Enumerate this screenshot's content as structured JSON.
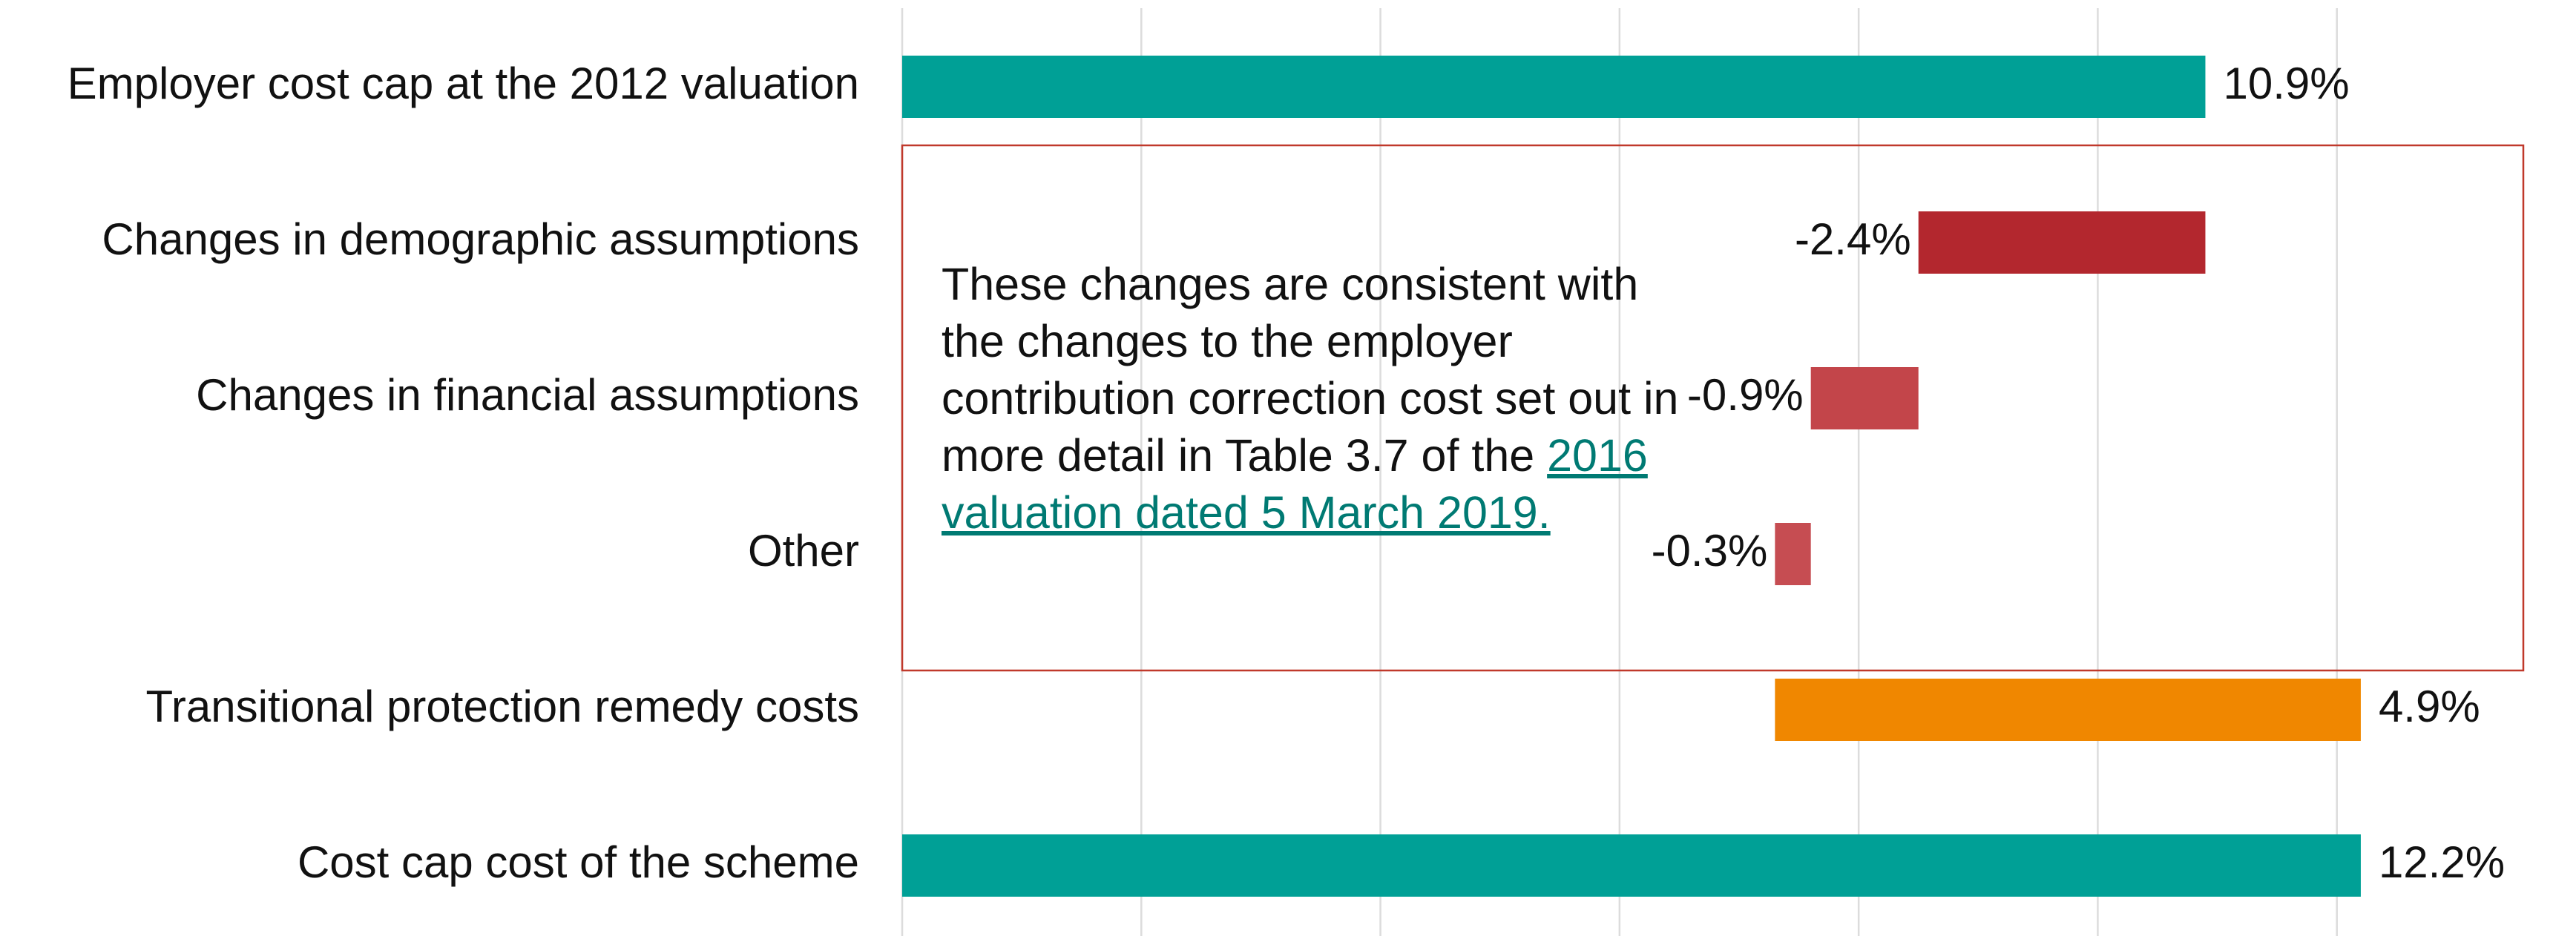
{
  "chart_data": {
    "type": "waterfall",
    "categories": [
      "Employer cost cap at the 2012 valuation",
      "Changes in demographic assumptions",
      "Changes in financial assumptions",
      "Other",
      "Transitional protection remedy costs",
      "Cost cap cost of the scheme"
    ],
    "values": [
      10.9,
      -2.4,
      -0.9,
      -0.3,
      4.9,
      12.2
    ],
    "value_labels": [
      "10.9%",
      "-2.4%",
      "-0.9%",
      "-0.3%",
      "4.9%",
      "12.2%"
    ],
    "measure": [
      "absolute",
      "relative",
      "relative",
      "relative",
      "relative",
      "total"
    ],
    "colors": [
      "#00a096",
      "#b3272e",
      "#c3454a",
      "#c64d52",
      "#f08700",
      "#00a096"
    ],
    "xlim": [
      0,
      14
    ],
    "xticks": [
      0,
      2,
      4,
      6,
      8,
      10,
      12
    ],
    "grid": true,
    "annotation": {
      "text": "These changes are consistent with the changes to the employer contribution correction cost set out in more detail in Table 3.7 of the",
      "link": "2016 valuation dated 5 March 2019."
    }
  }
}
